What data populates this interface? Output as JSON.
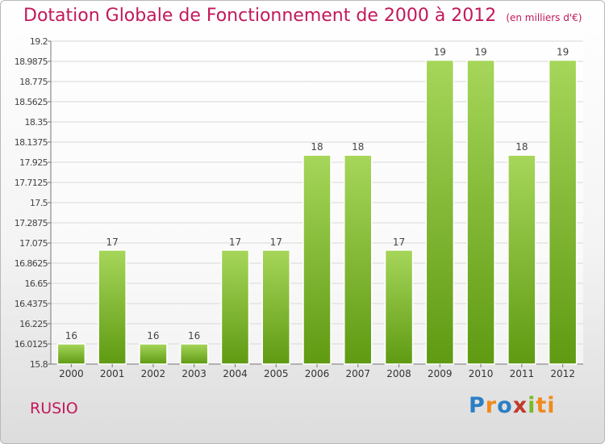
{
  "header": {
    "title": "Dotation Globale de Fonctionnement de 2000 à 2012",
    "unit": "(en milliers d'€)"
  },
  "commune": "RUSIO",
  "logo": {
    "letters": [
      "P",
      "r",
      "o",
      "x",
      "i",
      "ti"
    ]
  },
  "colors": {
    "accent": "#c2185b",
    "bar_light": "#a6d65a",
    "bar_dark": "#5f9a12",
    "grid": "#d8d8d8"
  },
  "chart_data": {
    "type": "bar",
    "categories": [
      "2000",
      "2001",
      "2002",
      "2003",
      "2004",
      "2005",
      "2006",
      "2007",
      "2008",
      "2009",
      "2010",
      "2011",
      "2012"
    ],
    "values": [
      16,
      17,
      16,
      16,
      17,
      17,
      18,
      18,
      17,
      19,
      19,
      18,
      19
    ],
    "data_labels": [
      "16",
      "17",
      "16",
      "16",
      "17",
      "17",
      "18",
      "18",
      "17",
      "19",
      "19",
      "18",
      "19"
    ],
    "bar_display_values": [
      16.0125,
      17.0,
      16.0125,
      16.0125,
      17.0,
      17.0,
      18.0,
      18.0,
      17.0,
      19.0,
      19.0,
      18.0,
      19.0
    ],
    "yticks": [
      "15.8",
      "16.0125",
      "16.225",
      "16.4375",
      "16.65",
      "16.8625",
      "17.075",
      "17.2875",
      "17.5",
      "17.7125",
      "17.925",
      "18.1375",
      "18.35",
      "18.5625",
      "18.775",
      "18.9875",
      "19.2"
    ],
    "ylim": [
      15.8,
      19.2
    ],
    "grid": true,
    "legend": "none",
    "xlabel": "",
    "ylabel": ""
  }
}
